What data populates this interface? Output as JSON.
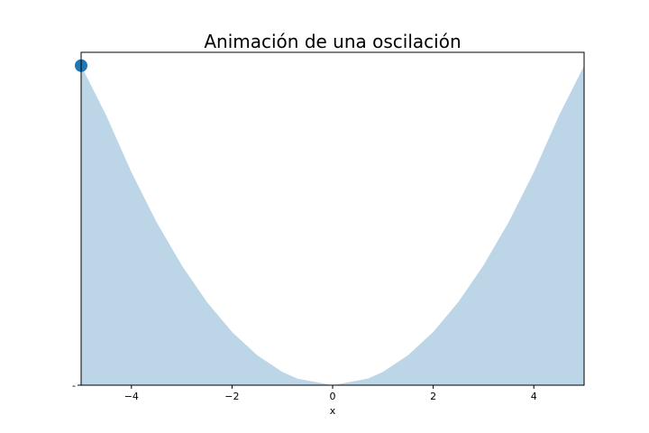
{
  "chart_data": {
    "type": "area",
    "title": "Animación de una oscilación",
    "xlabel": "x",
    "ylabel": "",
    "xlim": [
      -5,
      5
    ],
    "ylim": [
      0,
      25
    ],
    "grid": false,
    "x_ticks": [
      -4,
      -2,
      0,
      2,
      4
    ],
    "x_tick_labels": [
      "−4",
      "−2",
      "0",
      "2",
      "4"
    ],
    "y_tick_labels": [
      "-"
    ],
    "series": [
      {
        "x": [
          -5.0,
          -4.5,
          -4.0,
          -3.5,
          -3.0,
          -2.5,
          -2.0,
          -1.5,
          -1.0,
          -0.7,
          0.0,
          0.7,
          1.0,
          1.5,
          2.0,
          2.5,
          3.0,
          3.5,
          4.0,
          4.5,
          5.0
        ],
        "y": [
          24.0,
          20.25,
          16.0,
          12.25,
          9.0,
          6.25,
          4.0,
          2.25,
          1.0,
          0.49,
          0.0,
          0.49,
          1.0,
          2.25,
          4.0,
          6.25,
          9.0,
          12.25,
          16.0,
          20.25,
          24.0
        ]
      }
    ],
    "marker": {
      "x": -5.0,
      "y": 24.0
    },
    "fill_color": "#bcd6e8",
    "marker_color": "#1f77b4"
  }
}
